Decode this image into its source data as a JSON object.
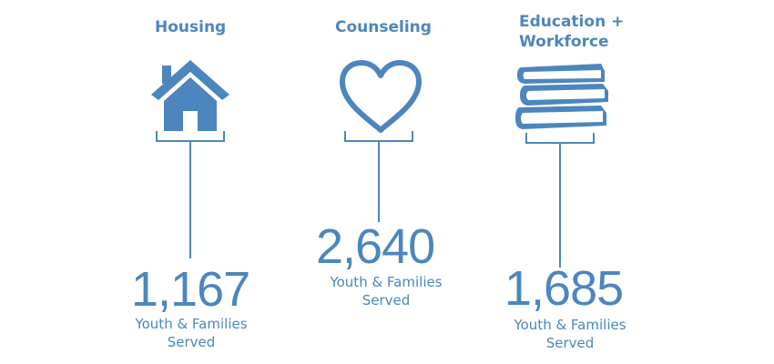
{
  "colors": {
    "accent": "#4d86bd",
    "background": "#ffffff"
  },
  "columns": [
    {
      "title": "Housing",
      "icon": "house-icon",
      "value": "1,167",
      "label_line1": "Youth & Families",
      "label_line2": "Served"
    },
    {
      "title": "Counseling",
      "icon": "heart-icon",
      "value": "2,640",
      "label_line1": "Youth & Families",
      "label_line2": "Served"
    },
    {
      "title_line1": "Education +",
      "title_line2": "Workforce",
      "icon": "books-icon",
      "value": "1,685",
      "label_line1": "Youth & Families",
      "label_line2": "Served"
    }
  ]
}
